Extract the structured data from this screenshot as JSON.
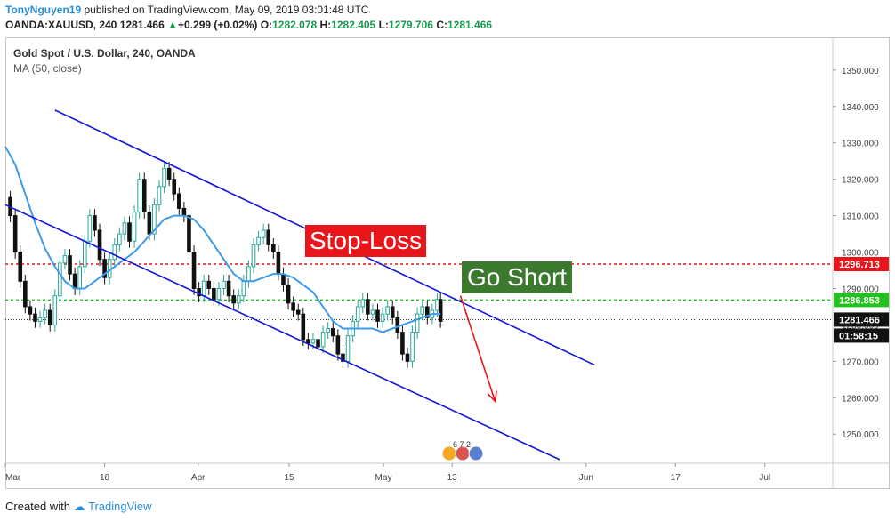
{
  "header": {
    "user": "TonyNguyen19",
    "published": "published on TradingView.com, May 09, 2019 03:01:48 UTC",
    "symbol": "OANDA:XAUUSD, 240",
    "price": "1281.466",
    "change": "+0.299 (+0.02%)",
    "o_label": "O:",
    "o_value": "1282.078",
    "h_label": "H:",
    "h_value": "1282.405",
    "l_label": "L:",
    "l_value": "1279.706",
    "c_label": "C:",
    "c_value": "1281.466"
  },
  "legend": {
    "title": "Gold Spot / U.S. Dollar, 240, OANDA",
    "indicator": "MA (50, close)"
  },
  "annotations": {
    "stop_loss": "Stop-Loss",
    "go_short": "Go Short",
    "events": "6 7 2"
  },
  "price_tags": {
    "stop": "1296.713",
    "entry": "1286.853",
    "last": "1281.466",
    "countdown": "01:58:15"
  },
  "footer": {
    "created_with": "Created with",
    "brand": "TradingView"
  },
  "colors": {
    "up": "#26a69a",
    "down": "#111111",
    "ma": "#3d9be9",
    "channel": "#1414d8",
    "stop": "#e8151b",
    "entry": "#21c21d",
    "arrow": "#e8151b",
    "goshort_bg": "#3b7a2e"
  },
  "chart_data": {
    "type": "line",
    "ylim": [
      1242,
      1359
    ],
    "yticks": [
      1250,
      1260,
      1270,
      1280,
      1290,
      1300,
      1310,
      1320,
      1330,
      1340,
      1350
    ],
    "ytick_labels": [
      "1250.000",
      "1260.000",
      "1270.000",
      "1280.000",
      "1290.000",
      "1300.000",
      "1310.000",
      "1320.000",
      "1330.000",
      "1340.000",
      "1350.000"
    ],
    "xlim": [
      0,
      1
    ],
    "xticks": [
      0,
      0.12,
      0.233,
      0.343,
      0.457,
      0.54,
      0.702,
      0.81,
      0.918
    ],
    "xtick_labels": [
      "Mar",
      "18",
      "Apr",
      "15",
      "May",
      "13",
      "Jun",
      "17",
      "Jul"
    ],
    "price_series": [
      [
        0.0,
        1315
      ],
      [
        0.006,
        1310
      ],
      [
        0.012,
        1300
      ],
      [
        0.018,
        1292
      ],
      [
        0.024,
        1285
      ],
      [
        0.03,
        1283
      ],
      [
        0.036,
        1281
      ],
      [
        0.042,
        1282
      ],
      [
        0.048,
        1284
      ],
      [
        0.054,
        1280
      ],
      [
        0.06,
        1288
      ],
      [
        0.066,
        1297
      ],
      [
        0.072,
        1299
      ],
      [
        0.078,
        1294
      ],
      [
        0.084,
        1290
      ],
      [
        0.09,
        1296
      ],
      [
        0.096,
        1303
      ],
      [
        0.102,
        1310
      ],
      [
        0.108,
        1306
      ],
      [
        0.114,
        1298
      ],
      [
        0.12,
        1293
      ],
      [
        0.126,
        1298
      ],
      [
        0.132,
        1302
      ],
      [
        0.138,
        1305
      ],
      [
        0.144,
        1308
      ],
      [
        0.15,
        1303
      ],
      [
        0.156,
        1311
      ],
      [
        0.162,
        1320
      ],
      [
        0.168,
        1311
      ],
      [
        0.174,
        1305
      ],
      [
        0.18,
        1313
      ],
      [
        0.186,
        1318
      ],
      [
        0.192,
        1323
      ],
      [
        0.198,
        1320
      ],
      [
        0.204,
        1316
      ],
      [
        0.21,
        1312
      ],
      [
        0.216,
        1310
      ],
      [
        0.222,
        1300
      ],
      [
        0.228,
        1290
      ],
      [
        0.234,
        1288
      ],
      [
        0.24,
        1292
      ],
      [
        0.246,
        1290
      ],
      [
        0.252,
        1287
      ],
      [
        0.258,
        1290
      ],
      [
        0.264,
        1292
      ],
      [
        0.27,
        1288
      ],
      [
        0.276,
        1286
      ],
      [
        0.282,
        1288
      ],
      [
        0.288,
        1292
      ],
      [
        0.294,
        1296
      ],
      [
        0.3,
        1302
      ],
      [
        0.306,
        1304
      ],
      [
        0.312,
        1306
      ],
      [
        0.318,
        1302
      ],
      [
        0.324,
        1300
      ],
      [
        0.33,
        1294
      ],
      [
        0.336,
        1291
      ],
      [
        0.342,
        1286
      ],
      [
        0.348,
        1284
      ],
      [
        0.354,
        1283
      ],
      [
        0.36,
        1276
      ],
      [
        0.366,
        1275
      ],
      [
        0.372,
        1276
      ],
      [
        0.378,
        1274
      ],
      [
        0.384,
        1278
      ],
      [
        0.39,
        1279
      ],
      [
        0.396,
        1277
      ],
      [
        0.402,
        1272
      ],
      [
        0.408,
        1270
      ],
      [
        0.414,
        1277
      ],
      [
        0.42,
        1281
      ],
      [
        0.426,
        1285
      ],
      [
        0.432,
        1287
      ],
      [
        0.438,
        1283
      ],
      [
        0.444,
        1284
      ],
      [
        0.45,
        1281
      ],
      [
        0.456,
        1283
      ],
      [
        0.462,
        1285
      ],
      [
        0.468,
        1282
      ],
      [
        0.474,
        1278
      ],
      [
        0.48,
        1272
      ],
      [
        0.486,
        1270
      ],
      [
        0.492,
        1278
      ],
      [
        0.498,
        1283
      ],
      [
        0.504,
        1285
      ],
      [
        0.51,
        1282
      ],
      [
        0.516,
        1284
      ],
      [
        0.522,
        1287
      ],
      [
        0.526,
        1281
      ]
    ],
    "ma_series": [
      [
        0.0,
        1329
      ],
      [
        0.012,
        1324
      ],
      [
        0.024,
        1316
      ],
      [
        0.036,
        1308
      ],
      [
        0.048,
        1301
      ],
      [
        0.06,
        1296
      ],
      [
        0.072,
        1292
      ],
      [
        0.084,
        1290
      ],
      [
        0.096,
        1290
      ],
      [
        0.108,
        1292
      ],
      [
        0.12,
        1294
      ],
      [
        0.132,
        1296
      ],
      [
        0.144,
        1298
      ],
      [
        0.156,
        1300
      ],
      [
        0.168,
        1303
      ],
      [
        0.18,
        1306
      ],
      [
        0.192,
        1309
      ],
      [
        0.204,
        1310
      ],
      [
        0.216,
        1310
      ],
      [
        0.228,
        1309
      ],
      [
        0.24,
        1306
      ],
      [
        0.252,
        1302
      ],
      [
        0.264,
        1298
      ],
      [
        0.276,
        1294
      ],
      [
        0.288,
        1292
      ],
      [
        0.3,
        1292
      ],
      [
        0.312,
        1293
      ],
      [
        0.324,
        1294
      ],
      [
        0.336,
        1294
      ],
      [
        0.348,
        1293
      ],
      [
        0.36,
        1291
      ],
      [
        0.372,
        1289
      ],
      [
        0.384,
        1285
      ],
      [
        0.396,
        1281
      ],
      [
        0.408,
        1279
      ],
      [
        0.42,
        1279
      ],
      [
        0.432,
        1279
      ],
      [
        0.444,
        1279
      ],
      [
        0.456,
        1278
      ],
      [
        0.468,
        1279
      ],
      [
        0.48,
        1280
      ],
      [
        0.492,
        1281
      ],
      [
        0.504,
        1282
      ],
      [
        0.516,
        1283
      ],
      [
        0.526,
        1283
      ]
    ],
    "channel_upper": [
      [
        0.06,
        1339
      ],
      [
        0.712,
        1269
      ]
    ],
    "channel_lower": [
      [
        0.0,
        1313
      ],
      [
        0.67,
        1243
      ]
    ],
    "stop_level": 1296.713,
    "entry_level": 1286.853,
    "last_level": 1281.466,
    "arrow": [
      [
        0.55,
        1288
      ],
      [
        0.592,
        1259
      ]
    ]
  }
}
